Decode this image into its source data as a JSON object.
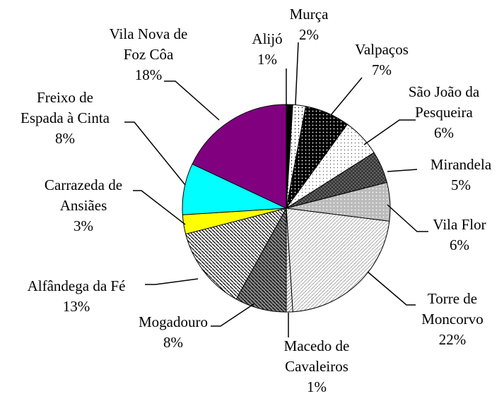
{
  "chart_data": {
    "type": "pie",
    "categories": [
      "Alijó",
      "Murça",
      "Valpaços",
      "São João da\nPesqueira",
      "Mirandela",
      "Vila Flor",
      "Torre de\nMoncorvo",
      "Macedo de\nCavaleiros",
      "Mogadouro",
      "Alfândega da Fé",
      "Carrazeda de\nAnsiães",
      "Freixo de\nEspada à Cinta",
      "Vila Nova de\nFoz Côa"
    ],
    "values": [
      1,
      2,
      7,
      6,
      5,
      6,
      22,
      1,
      8,
      13,
      3,
      8,
      18
    ],
    "value_labels": [
      "1%",
      "2%",
      "7%",
      "6%",
      "5%",
      "6%",
      "22%",
      "1%",
      "8%",
      "13%",
      "3%",
      "8%",
      "18%"
    ],
    "colors": [
      "#000000",
      "#ffffff",
      "#000000",
      "#ffffff",
      "#666666",
      "#bbbbbb",
      "#ffffff",
      "#ffffff",
      "#888888",
      "#ffffff",
      "#ffff00",
      "#00ffff",
      "#800080"
    ]
  }
}
